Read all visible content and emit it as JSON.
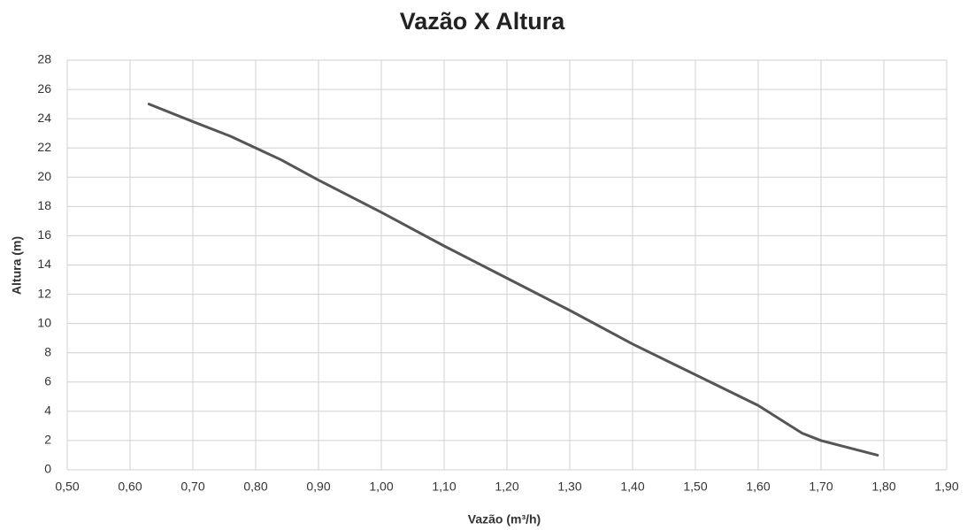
{
  "chart_data": {
    "type": "line",
    "title": "Vazão X Altura",
    "x_label": "Vazão (m³/h)",
    "y_label": "Altura (m)",
    "x": [
      0.63,
      0.7,
      0.76,
      0.8,
      0.84,
      0.9,
      1.0,
      1.1,
      1.2,
      1.3,
      1.4,
      1.5,
      1.6,
      1.67,
      1.7,
      1.79
    ],
    "values": [
      25,
      23.8,
      22.8,
      22,
      21.2,
      19.8,
      17.6,
      15.3,
      13.1,
      10.9,
      8.6,
      6.5,
      4.4,
      2.5,
      2,
      1
    ],
    "color": "#555555",
    "xlim": [
      0.5,
      1.9
    ],
    "xticks": [
      {
        "value": 0.5,
        "label": "0,50"
      },
      {
        "value": 0.6,
        "label": "0,60"
      },
      {
        "value": 0.7,
        "label": "0,70"
      },
      {
        "value": 0.8,
        "label": "0,80"
      },
      {
        "value": 0.9,
        "label": "0,90"
      },
      {
        "value": 1.0,
        "label": "1,00"
      },
      {
        "value": 1.1,
        "label": "1,10"
      },
      {
        "value": 1.2,
        "label": "1,20"
      },
      {
        "value": 1.3,
        "label": "1,30"
      },
      {
        "value": 1.4,
        "label": "1,40"
      },
      {
        "value": 1.5,
        "label": "1,50"
      },
      {
        "value": 1.6,
        "label": "1,60"
      },
      {
        "value": 1.7,
        "label": "1,70"
      },
      {
        "value": 1.8,
        "label": "1,80"
      },
      {
        "value": 1.9,
        "label": "1,90"
      }
    ],
    "ylim": [
      0,
      28
    ],
    "yticks": [
      0,
      2,
      4,
      6,
      8,
      10,
      12,
      14,
      16,
      18,
      20,
      22,
      24,
      26,
      28
    ],
    "grid": true
  }
}
